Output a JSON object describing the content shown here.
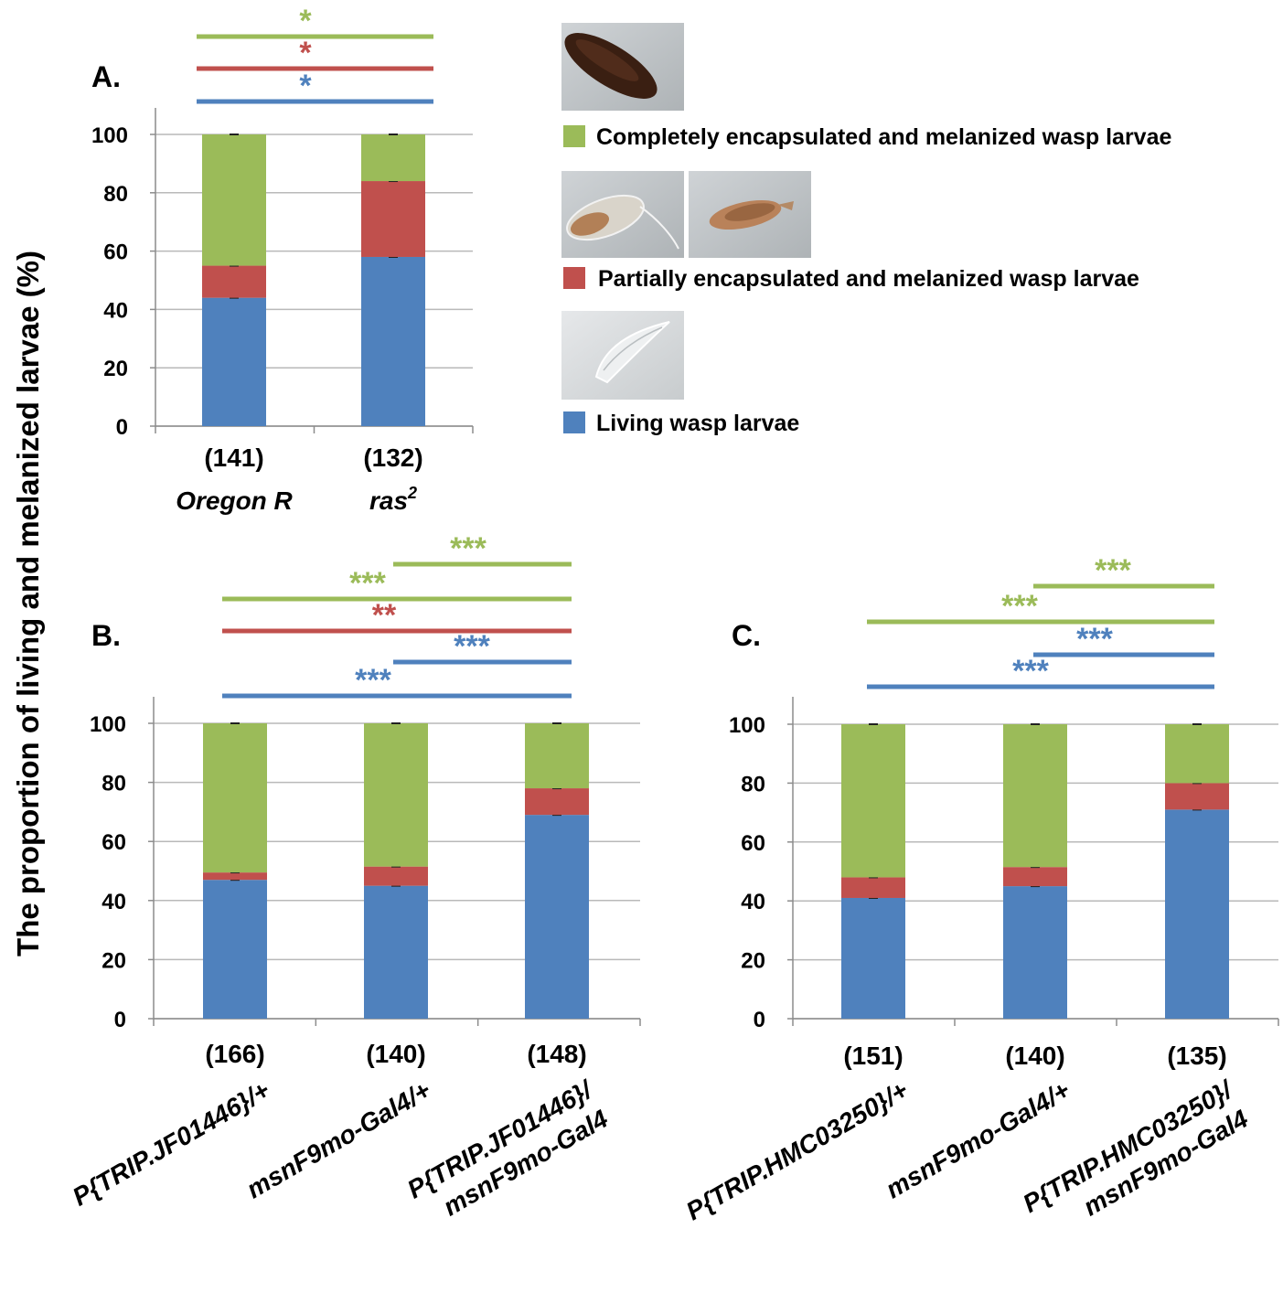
{
  "y_axis_label": "The proportion of living  and melanized larvae (%)",
  "colors": {
    "living": "#4f81bd",
    "partial": "#c0504d",
    "complete": "#9bbb59"
  },
  "legend": {
    "complete": "Completely encapsulated and melanized wasp larvae",
    "partial": "Partially encapsulated and  melanized wasp larvae",
    "living": "Living wasp larvae"
  },
  "chart_data": [
    {
      "panel": "A.",
      "type": "bar",
      "stacked": true,
      "ylim": [
        0,
        100
      ],
      "yticks": [
        "0",
        "20",
        "40",
        "60",
        "80",
        "100"
      ],
      "counts": [
        "(141)",
        "(132)"
      ],
      "categories": [
        {
          "main": "Oregon R",
          "sup": ""
        },
        {
          "main": "ras",
          "sup": "2"
        }
      ],
      "series": [
        {
          "key": "living",
          "values": [
            44,
            58
          ]
        },
        {
          "key": "partial",
          "values": [
            11,
            26
          ]
        },
        {
          "key": "complete",
          "values": [
            45,
            16
          ]
        }
      ],
      "significance": [
        {
          "stars": "*",
          "color": "complete",
          "from": 0,
          "to": 1
        },
        {
          "stars": "*",
          "color": "partial",
          "from": 0,
          "to": 1
        },
        {
          "stars": "*",
          "color": "living",
          "from": 0,
          "to": 1
        }
      ]
    },
    {
      "panel": "B.",
      "type": "bar",
      "stacked": true,
      "ylim": [
        0,
        100
      ],
      "yticks": [
        "0",
        "20",
        "40",
        "60",
        "80",
        "100"
      ],
      "counts": [
        "(166)",
        "(140)",
        "(148)"
      ],
      "categories": [
        {
          "lines": [
            "P{TRIP.JF01446}/+"
          ]
        },
        {
          "lines": [
            "msnF9mo-Gal4/+"
          ]
        },
        {
          "lines": [
            "P{TRIP.JF01446}/",
            "msnF9mo-Gal4"
          ]
        }
      ],
      "series": [
        {
          "key": "living",
          "values": [
            47,
            45,
            69
          ]
        },
        {
          "key": "partial",
          "values": [
            2.5,
            6.5,
            9
          ]
        },
        {
          "key": "complete",
          "values": [
            50.5,
            48.5,
            22
          ]
        }
      ],
      "significance": [
        {
          "stars": "***",
          "color": "complete",
          "from": 1,
          "to": 2
        },
        {
          "stars": "***",
          "color": "complete",
          "from": 0,
          "to": 2
        },
        {
          "stars": "**",
          "color": "partial",
          "from": 0,
          "to": 2
        },
        {
          "stars": "***",
          "color": "living",
          "from": 1,
          "to": 2
        },
        {
          "stars": "***",
          "color": "living",
          "from": 0,
          "to": 2
        }
      ]
    },
    {
      "panel": "C.",
      "type": "bar",
      "stacked": true,
      "ylim": [
        0,
        100
      ],
      "yticks": [
        "0",
        "20",
        "40",
        "60",
        "80",
        "100"
      ],
      "counts": [
        "(151)",
        "(140)",
        "(135)"
      ],
      "categories": [
        {
          "lines": [
            "P{TRIP.HMC03250}/+"
          ]
        },
        {
          "lines": [
            "msnF9mo-Gal4/+"
          ]
        },
        {
          "lines": [
            "P{TRIP.HMC03250}/",
            "msnF9mo-Gal4"
          ]
        }
      ],
      "series": [
        {
          "key": "living",
          "values": [
            41,
            45,
            71
          ]
        },
        {
          "key": "partial",
          "values": [
            7,
            6.5,
            9
          ]
        },
        {
          "key": "complete",
          "values": [
            52,
            48.5,
            20
          ]
        }
      ],
      "significance": [
        {
          "stars": "***",
          "color": "complete",
          "from": 1,
          "to": 2
        },
        {
          "stars": "***",
          "color": "complete",
          "from": 0,
          "to": 2
        },
        {
          "stars": "***",
          "color": "living",
          "from": 1,
          "to": 2
        },
        {
          "stars": "***",
          "color": "living",
          "from": 0,
          "to": 2
        }
      ]
    }
  ]
}
